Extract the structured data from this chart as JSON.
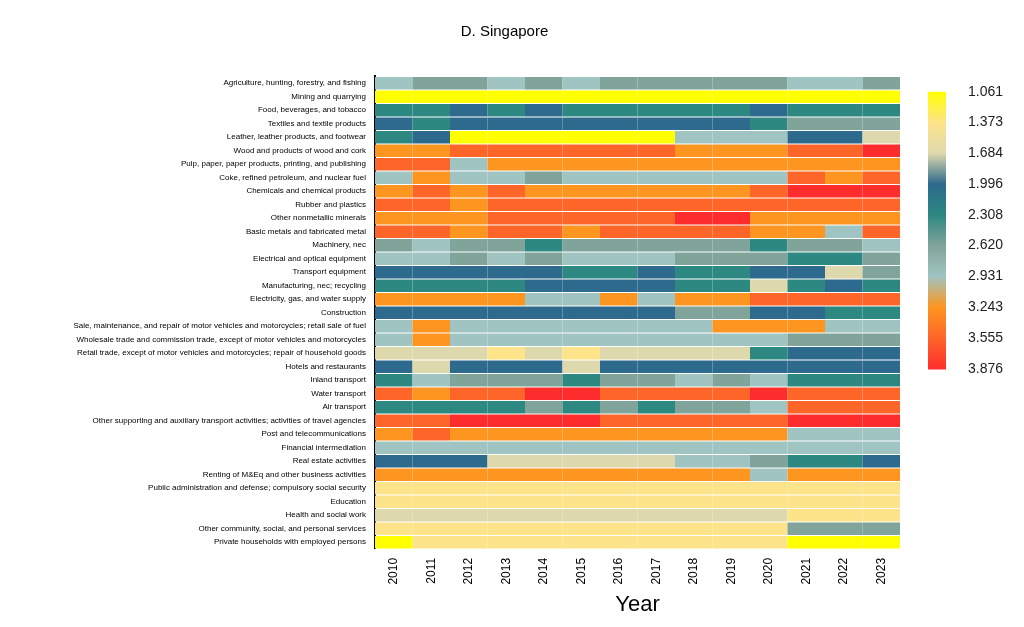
{
  "chart_data": {
    "type": "heatmap",
    "title": "D. Singapore",
    "xlabel": "Year",
    "categories": [
      "2010",
      "2011",
      "2012",
      "2013",
      "2014",
      "2015",
      "2016",
      "2017",
      "2018",
      "2019",
      "2020",
      "2021",
      "2022",
      "2023"
    ],
    "y_categories": [
      "Agriculture, hunting, forestry, and fishing",
      "Mining and quarrying",
      "Food, beverages, and tobacco",
      "Textiles and textile products",
      "Leather, leather products, and footwear",
      "Wood and products of wood and cork",
      "Pulp, paper, paper products, printing, and publishing",
      "Coke, refined petroleum, and nuclear fuel",
      "Chemicals and chemical products",
      "Rubber and plastics",
      "Other nonmetallic minerals",
      "Basic metals and fabricated metal",
      "Machinery, nec",
      "Electrical and optical equipment",
      "Transport equipment",
      "Manufacturing, nec; recycling",
      "Electricity, gas, and water supply",
      "Construction",
      "Sale, maintenance, and repair of motor vehicles and motorcycles; retail sale of fuel",
      "Wholesale trade and commission trade, except of motor vehicles and motorcycles",
      "Retail trade, except of motor vehicles and motorcycles; repair of household goods",
      "Hotels and restaurants",
      "Inland transport",
      "Water transport",
      "Air transport",
      "Other supporting and auxiliary transport activities; activities of travel agencies",
      "Post and telecommunications",
      "Financial intermediation",
      "Real estate activities",
      "Renting of M&Eq and other business activities",
      "Public administration and defense; compulsory social security",
      "Education",
      "Health and social work",
      "Other community, social, and personal services",
      "Private households with employed persons"
    ],
    "cells": [
      [
        2.931,
        2.62,
        2.62,
        2.931,
        2.62,
        2.931,
        2.62,
        2.62,
        2.62,
        2.62,
        2.62,
        2.931,
        2.931,
        2.62
      ],
      [
        1.061,
        1.061,
        1.061,
        1.061,
        1.061,
        1.061,
        1.061,
        1.061,
        1.061,
        1.061,
        1.061,
        1.061,
        1.061,
        1.061
      ],
      [
        2.308,
        2.308,
        1.996,
        2.308,
        1.996,
        2.308,
        2.308,
        2.308,
        2.308,
        2.308,
        1.996,
        2.308,
        2.308,
        2.308
      ],
      [
        1.996,
        2.308,
        1.996,
        1.996,
        1.996,
        1.996,
        1.996,
        1.996,
        1.996,
        1.996,
        2.308,
        2.62,
        2.62,
        2.62
      ],
      [
        2.308,
        1.996,
        1.061,
        1.061,
        1.061,
        1.061,
        1.061,
        1.061,
        2.931,
        2.931,
        2.931,
        1.996,
        1.996,
        1.684
      ],
      [
        3.243,
        3.243,
        3.555,
        3.555,
        3.555,
        3.555,
        3.555,
        3.555,
        3.243,
        3.243,
        3.243,
        3.555,
        3.555,
        3.876
      ],
      [
        3.555,
        3.555,
        2.931,
        3.243,
        3.243,
        3.243,
        3.243,
        3.243,
        3.243,
        3.243,
        3.243,
        3.243,
        3.243,
        3.243
      ],
      [
        2.931,
        3.243,
        2.931,
        2.931,
        2.62,
        2.931,
        2.931,
        2.931,
        2.931,
        2.931,
        2.931,
        3.555,
        3.243,
        3.555
      ],
      [
        3.243,
        3.555,
        3.243,
        3.555,
        3.243,
        3.243,
        3.243,
        3.243,
        3.243,
        3.243,
        3.555,
        3.876,
        3.876,
        3.876
      ],
      [
        3.555,
        3.555,
        3.243,
        3.555,
        3.555,
        3.555,
        3.555,
        3.555,
        3.555,
        3.555,
        3.555,
        3.555,
        3.555,
        3.555
      ],
      [
        3.243,
        3.243,
        3.243,
        3.555,
        3.555,
        3.555,
        3.555,
        3.555,
        3.876,
        3.876,
        3.243,
        3.243,
        3.243,
        3.243
      ],
      [
        3.555,
        3.555,
        3.243,
        3.555,
        3.555,
        3.243,
        3.555,
        3.555,
        3.555,
        3.555,
        3.243,
        3.243,
        2.931,
        3.555
      ],
      [
        2.62,
        2.931,
        2.62,
        2.62,
        2.308,
        2.62,
        2.62,
        2.62,
        2.62,
        2.62,
        2.308,
        2.62,
        2.62,
        2.931
      ],
      [
        2.931,
        2.931,
        2.62,
        2.931,
        2.62,
        2.931,
        2.931,
        2.931,
        2.62,
        2.62,
        2.62,
        2.308,
        2.308,
        2.62
      ],
      [
        1.996,
        1.996,
        1.996,
        1.996,
        1.996,
        2.308,
        2.308,
        1.996,
        2.308,
        2.308,
        1.996,
        1.996,
        1.684,
        2.62
      ],
      [
        2.308,
        2.308,
        2.308,
        2.308,
        1.996,
        1.996,
        1.996,
        1.996,
        2.308,
        2.308,
        1.684,
        2.308,
        1.996,
        2.308
      ],
      [
        3.243,
        3.243,
        3.243,
        3.243,
        2.931,
        2.931,
        3.243,
        2.931,
        3.243,
        3.243,
        3.555,
        3.555,
        3.555,
        3.555
      ],
      [
        1.996,
        1.996,
        1.996,
        1.996,
        1.996,
        1.996,
        1.996,
        1.996,
        2.62,
        2.62,
        1.996,
        1.996,
        2.308,
        2.308
      ],
      [
        2.931,
        3.243,
        2.931,
        2.931,
        2.931,
        2.931,
        2.931,
        2.931,
        2.931,
        3.243,
        3.243,
        3.243,
        2.931,
        2.931
      ],
      [
        2.931,
        3.243,
        2.931,
        2.931,
        2.931,
        2.931,
        2.931,
        2.931,
        2.931,
        2.931,
        2.931,
        2.62,
        2.62,
        2.62
      ],
      [
        1.684,
        1.684,
        1.684,
        1.373,
        1.684,
        1.373,
        1.684,
        1.684,
        1.684,
        1.684,
        2.308,
        1.996,
        1.996,
        1.996
      ],
      [
        1.996,
        1.684,
        1.996,
        1.996,
        1.996,
        1.684,
        1.996,
        1.996,
        1.996,
        1.996,
        1.996,
        1.996,
        1.996,
        1.996
      ],
      [
        2.308,
        2.931,
        2.62,
        2.62,
        2.62,
        2.308,
        2.62,
        2.62,
        2.931,
        2.62,
        2.931,
        2.308,
        2.308,
        2.308
      ],
      [
        3.555,
        3.243,
        3.555,
        3.555,
        3.876,
        3.876,
        3.555,
        3.555,
        3.555,
        3.555,
        3.876,
        3.555,
        3.555,
        3.555
      ],
      [
        2.308,
        2.308,
        2.308,
        2.308,
        2.62,
        2.308,
        2.62,
        2.308,
        2.62,
        2.62,
        2.931,
        3.555,
        3.555,
        3.555
      ],
      [
        3.555,
        3.555,
        3.876,
        3.876,
        3.876,
        3.876,
        3.555,
        3.555,
        3.555,
        3.555,
        3.555,
        3.876,
        3.876,
        3.876
      ],
      [
        3.243,
        3.555,
        3.243,
        3.243,
        3.243,
        3.243,
        3.243,
        3.243,
        3.243,
        3.243,
        3.243,
        2.931,
        2.931,
        2.931
      ],
      [
        2.931,
        2.931,
        2.931,
        2.931,
        2.931,
        2.931,
        2.931,
        2.931,
        2.931,
        2.931,
        2.931,
        2.931,
        2.931,
        2.931
      ],
      [
        1.996,
        1.996,
        1.996,
        1.684,
        1.684,
        1.684,
        1.684,
        1.684,
        2.931,
        2.931,
        2.62,
        2.308,
        2.308,
        1.996
      ],
      [
        3.243,
        3.243,
        3.243,
        3.243,
        3.243,
        3.243,
        3.243,
        3.243,
        3.243,
        3.243,
        2.931,
        3.243,
        3.243,
        3.243
      ],
      [
        1.373,
        1.373,
        1.373,
        1.373,
        1.373,
        1.373,
        1.373,
        1.373,
        1.373,
        1.373,
        1.373,
        1.373,
        1.373,
        1.373
      ],
      [
        1.373,
        1.373,
        1.373,
        1.373,
        1.373,
        1.373,
        1.373,
        1.373,
        1.373,
        1.373,
        1.373,
        1.373,
        1.373,
        1.373
      ],
      [
        1.684,
        1.684,
        1.684,
        1.684,
        1.684,
        1.684,
        1.684,
        1.684,
        1.684,
        1.684,
        1.684,
        1.373,
        1.373,
        1.373
      ],
      [
        1.373,
        1.373,
        1.373,
        1.373,
        1.373,
        1.373,
        1.373,
        1.373,
        1.373,
        1.373,
        1.373,
        2.62,
        2.62,
        2.62
      ],
      [
        1.061,
        1.373,
        1.373,
        1.373,
        1.373,
        1.373,
        1.373,
        1.373,
        1.373,
        1.373,
        1.373,
        1.061,
        1.061,
        1.061
      ]
    ],
    "cticks": [
      {
        "value": 1.061,
        "label": "1.061"
      },
      {
        "value": 1.373,
        "label": "1.373"
      },
      {
        "value": 1.684,
        "label": "1.684"
      },
      {
        "value": 1.996,
        "label": "1.996"
      },
      {
        "value": 2.308,
        "label": "2.308"
      },
      {
        "value": 2.62,
        "label": "2.620"
      },
      {
        "value": 2.931,
        "label": "2.931"
      },
      {
        "value": 3.243,
        "label": "3.243"
      },
      {
        "value": 3.555,
        "label": "3.555"
      },
      {
        "value": 3.876,
        "label": "3.876"
      }
    ],
    "colors": [
      "#ffff00",
      "#fde38a",
      "#ded9ad",
      "#2e6a8e",
      "#2d8882",
      "#80a39a",
      "#a0c4c1",
      "#fd9620",
      "#fe6629",
      "#fe2d2d"
    ]
  }
}
